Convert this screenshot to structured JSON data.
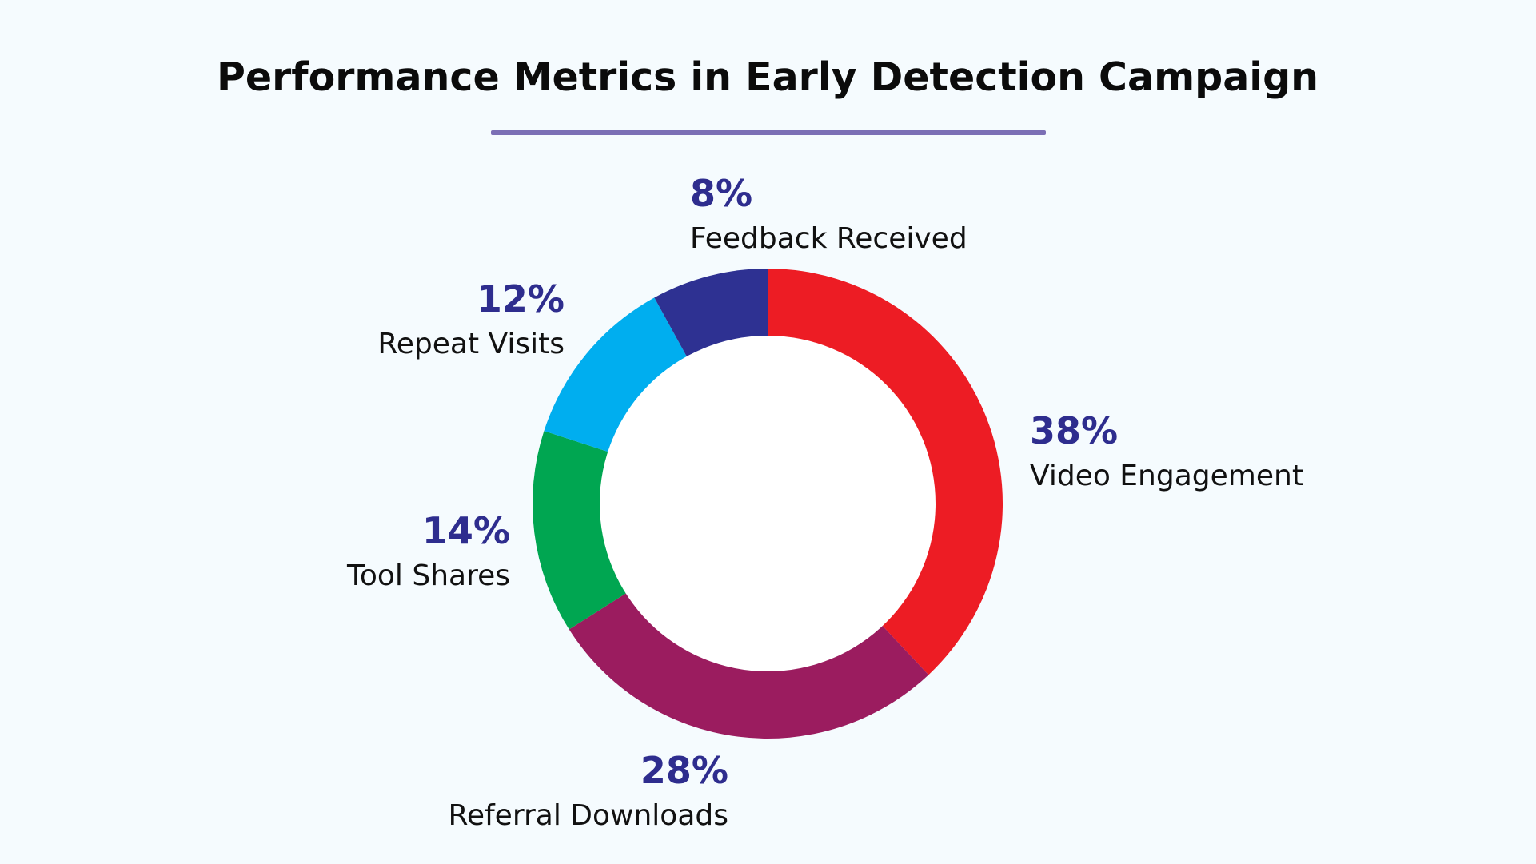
{
  "chart_data": {
    "type": "pie",
    "variant": "donut",
    "title": "Performance Metrics in Early Detection Campaign",
    "unit": "%",
    "legend": "none",
    "label_color": "#2e2d8e",
    "underline_color": "#7b6fb5",
    "background_color": "#f5fbfe",
    "slices": [
      {
        "label": "Video Engagement",
        "value": 38,
        "value_label": "38%",
        "color": "#ed1c24"
      },
      {
        "label": "Referral Downloads",
        "value": 28,
        "value_label": "28%",
        "color": "#9b1c5f"
      },
      {
        "label": "Tool Shares",
        "value": 14,
        "value_label": "14%",
        "color": "#00a651"
      },
      {
        "label": "Repeat Visits",
        "value": 12,
        "value_label": "12%",
        "color": "#00aeef"
      },
      {
        "label": "Feedback Received",
        "value": 8,
        "value_label": "8%",
        "color": "#2e3192"
      }
    ]
  }
}
